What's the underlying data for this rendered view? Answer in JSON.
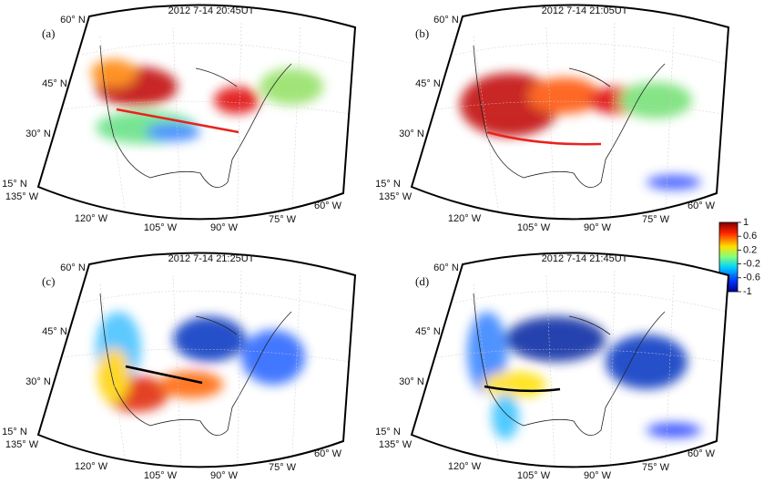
{
  "panels": [
    {
      "label": "(a)",
      "title": "2012 7-14 20:45UT",
      "line_color": "#e8231c",
      "lat_labels": [
        "60° N",
        "45° N",
        "30° N",
        "15° N"
      ],
      "lon_labels": [
        "135° W",
        "120° W",
        "105° W",
        "90° W",
        "75° W",
        "60° W"
      ]
    },
    {
      "label": "(b)",
      "title": "2012 7-14 21:05UT",
      "line_color": "#e8231c",
      "lat_labels": [
        "60° N",
        "45° N",
        "30° N",
        "15° N"
      ],
      "lon_labels": [
        "135° W",
        "120° W",
        "105° W",
        "90° W",
        "75° W",
        "60° W"
      ]
    },
    {
      "label": "(c)",
      "title": "2012 7-14 21:25UT",
      "line_color": "#000000",
      "lat_labels": [
        "60° N",
        "45° N",
        "30° N",
        "15° N"
      ],
      "lon_labels": [
        "135° W",
        "120° W",
        "105° W",
        "90° W",
        "75° W",
        "60° W"
      ]
    },
    {
      "label": "(d)",
      "title": "2012 7-14 21:45UT",
      "line_color": "#000000",
      "lat_labels": [
        "60° N",
        "45° N",
        "30° N",
        "15° N"
      ],
      "lon_labels": [
        "135° W",
        "120° W",
        "105° W",
        "90° W",
        "75° W",
        "60° W"
      ]
    }
  ],
  "colorbar": {
    "lim": [
      -1,
      1
    ],
    "ticks": [
      1,
      0.6,
      0.2,
      -0.2,
      -0.6,
      -1
    ]
  }
}
